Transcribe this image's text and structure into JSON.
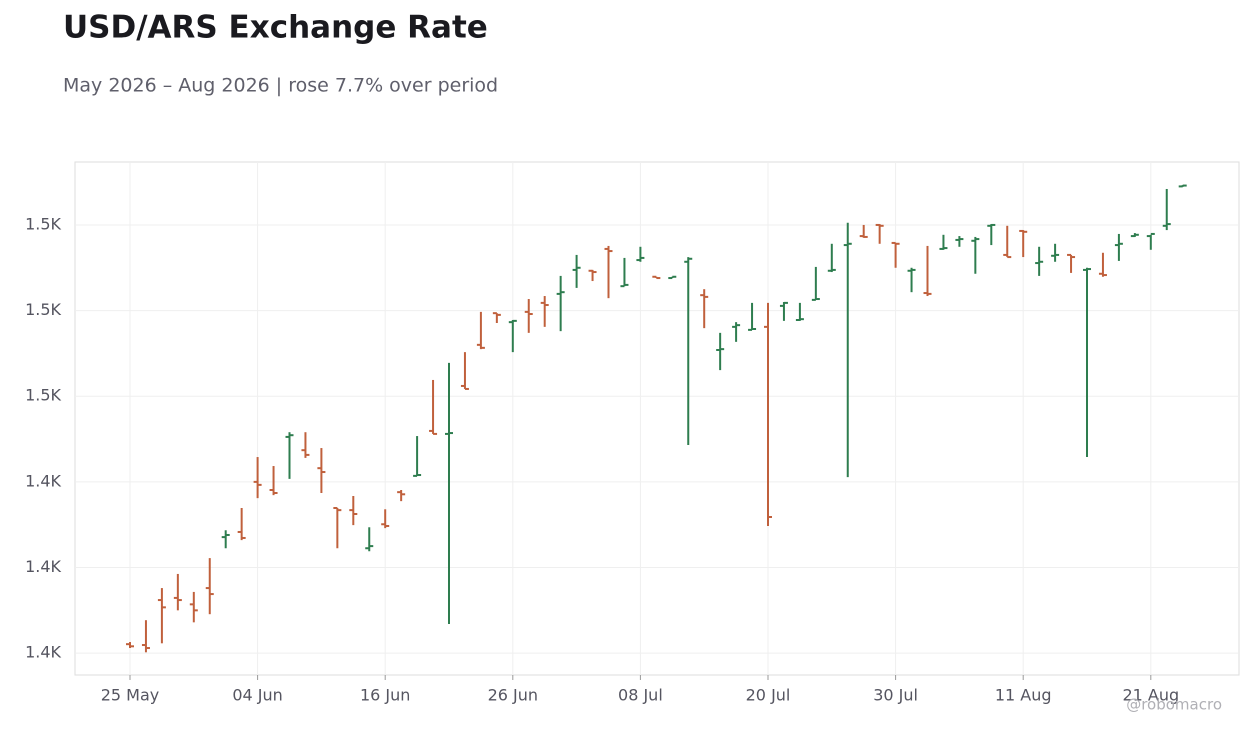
{
  "chart_data": {
    "type": "ohlc",
    "title": "USD/ARS Exchange Rate",
    "subtitle": "May 2026 – Aug 2026 | rose 7.7% over period",
    "annotation": "@robomacro",
    "categories": [
      "25 May",
      null,
      null,
      null,
      null,
      null,
      null,
      null,
      "04 Jun",
      null,
      null,
      null,
      null,
      null,
      null,
      null,
      "16 Jun",
      null,
      null,
      null,
      null,
      null,
      null,
      null,
      "26 Jun",
      null,
      null,
      null,
      null,
      null,
      null,
      null,
      "08 Jul",
      null,
      null,
      null,
      null,
      null,
      null,
      null,
      "20 Jul",
      null,
      null,
      null,
      null,
      null,
      null,
      null,
      "30 Jul",
      null,
      null,
      null,
      null,
      null,
      null,
      null,
      "11 Aug",
      null,
      null,
      null,
      null,
      null,
      null,
      null,
      "21 Aug",
      null,
      null
    ],
    "open": [
      1402.1,
      1401.9,
      1412.4,
      1412.9,
      1411.4,
      1415.2,
      1427.1,
      1428.3,
      1440.0,
      1438.1,
      1450.5,
      1447.4,
      1443.2,
      1433.9,
      1433.4,
      1424.5,
      1430.1,
      1437.6,
      1441.4,
      1451.9,
      1451.2,
      1462.4,
      1472.0,
      1479.4,
      1477.3,
      1479.7,
      1481.8,
      1483.9,
      1489.5,
      1489.3,
      1494.4,
      1485.7,
      1491.8,
      1487.9,
      1487.6,
      1491.4,
      1483.6,
      1470.8,
      1476.2,
      1475.5,
      1476.2,
      1481.1,
      1477.8,
      1482.5,
      1489.3,
      1495.3,
      1497.4,
      1500.0,
      1495.8,
      1489.3,
      1484.1,
      1494.4,
      1496.5,
      1496.3,
      1499.8,
      1493.0,
      1498.6,
      1491.1,
      1492.8,
      1493.0,
      1489.5,
      1488.6,
      1495.3,
      1497.4,
      1497.4,
      1499.8,
      1509.0
    ],
    "high": [
      1402.6,
      1407.7,
      1415.2,
      1418.5,
      1414.3,
      1422.2,
      1428.7,
      1433.9,
      1445.8,
      1443.7,
      1451.6,
      1451.6,
      1447.9,
      1433.9,
      1436.7,
      1429.4,
      1433.6,
      1438.1,
      1450.7,
      1463.8,
      1467.8,
      1470.3,
      1479.7,
      1479.4,
      1477.8,
      1482.7,
      1483.4,
      1488.1,
      1493.0,
      1489.5,
      1495.1,
      1492.3,
      1494.9,
      1487.9,
      1487.9,
      1492.5,
      1485.0,
      1474.8,
      1477.3,
      1481.8,
      1481.8,
      1482.0,
      1481.8,
      1490.2,
      1495.6,
      1500.5,
      1500.0,
      1500.2,
      1495.8,
      1490.0,
      1495.1,
      1497.7,
      1497.4,
      1497.2,
      1500.2,
      1499.8,
      1498.8,
      1494.9,
      1495.6,
      1493.0,
      1490.0,
      1493.5,
      1497.9,
      1498.1,
      1497.7,
      1508.4,
      1509.3
    ],
    "low": [
      1401.2,
      1400.2,
      1402.3,
      1410.0,
      1407.2,
      1409.1,
      1424.5,
      1426.4,
      1436.2,
      1436.9,
      1440.7,
      1445.6,
      1437.4,
      1424.5,
      1429.9,
      1423.8,
      1429.2,
      1435.5,
      1441.4,
      1451.2,
      1406.8,
      1461.7,
      1471.0,
      1477.1,
      1470.3,
      1474.8,
      1476.2,
      1475.2,
      1485.3,
      1486.9,
      1482.9,
      1485.7,
      1491.4,
      1487.6,
      1487.6,
      1448.6,
      1475.9,
      1466.1,
      1472.7,
      1475.5,
      1429.7,
      1477.6,
      1477.6,
      1482.5,
      1489.0,
      1441.1,
      1497.0,
      1495.6,
      1490.0,
      1484.3,
      1483.4,
      1494.2,
      1494.9,
      1488.6,
      1495.3,
      1492.5,
      1492.5,
      1488.1,
      1491.4,
      1488.8,
      1445.8,
      1487.9,
      1491.6,
      1497.2,
      1494.2,
      1498.8,
      1508.9
    ],
    "close": [
      1401.6,
      1401.2,
      1410.7,
      1412.4,
      1410.0,
      1413.8,
      1427.6,
      1426.9,
      1439.3,
      1437.4,
      1450.9,
      1446.3,
      1442.3,
      1433.4,
      1432.5,
      1425.0,
      1429.7,
      1437.1,
      1441.6,
      1451.2,
      1451.4,
      1461.7,
      1471.3,
      1479.0,
      1477.6,
      1479.2,
      1481.3,
      1484.3,
      1490.0,
      1489.0,
      1493.9,
      1486.0,
      1492.3,
      1487.6,
      1487.9,
      1492.1,
      1483.2,
      1471.0,
      1476.6,
      1475.7,
      1431.8,
      1481.8,
      1478.0,
      1482.7,
      1489.5,
      1495.6,
      1497.2,
      1499.8,
      1495.6,
      1489.5,
      1483.9,
      1494.6,
      1496.7,
      1496.7,
      1500.0,
      1492.5,
      1498.4,
      1491.4,
      1493.0,
      1492.5,
      1489.7,
      1488.3,
      1495.6,
      1497.7,
      1497.9,
      1500.2,
      1509.2
    ],
    "up_color": "#2e7d4f",
    "down_color": "#c0603c",
    "ylim": [
      1394.9,
      1514.7
    ],
    "yticks": [
      {
        "value": 1400,
        "label": "1.4K"
      },
      {
        "value": 1420,
        "label": "1.4K"
      },
      {
        "value": 1440,
        "label": "1.4K"
      },
      {
        "value": 1460,
        "label": "1.5K"
      },
      {
        "value": 1480,
        "label": "1.5K"
      },
      {
        "value": 1500,
        "label": "1.5K"
      }
    ],
    "grid": true
  }
}
